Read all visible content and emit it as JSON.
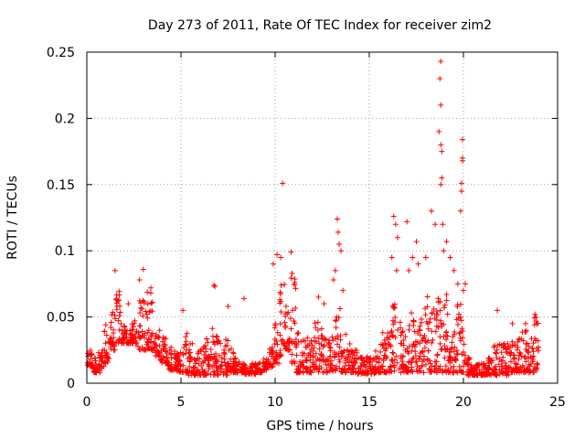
{
  "chart_data": {
    "type": "scatter",
    "title": "Day 273 of 2011, Rate Of TEC Index for receiver zim2",
    "xlabel": "GPS time / hours",
    "ylabel": "ROTI / TECUs",
    "xlim": [
      0,
      25
    ],
    "ylim": [
      0,
      0.25
    ],
    "xticks": [
      0,
      5,
      10,
      15,
      20,
      25
    ],
    "yticks": [
      0,
      0.05,
      0.1,
      0.15,
      0.2,
      0.25
    ],
    "xtick_labels": [
      "0",
      "5",
      "10",
      "15",
      "20",
      "25"
    ],
    "ytick_labels": [
      "0",
      "0.05",
      "0.1",
      "0.15",
      "0.2",
      "0.25"
    ],
    "grid": true,
    "legend": "none",
    "marker": "+",
    "color": "#ff0000",
    "series": [
      {
        "envelope": [
          [
            0.0,
            0.012,
            0.025
          ],
          [
            0.3,
            0.008,
            0.02
          ],
          [
            0.6,
            0.008,
            0.025
          ],
          [
            0.9,
            0.015,
            0.045
          ],
          [
            1.2,
            0.025,
            0.055
          ],
          [
            1.5,
            0.03,
            0.07
          ],
          [
            1.8,
            0.03,
            0.045
          ],
          [
            2.1,
            0.03,
            0.04
          ],
          [
            2.4,
            0.03,
            0.05
          ],
          [
            2.7,
            0.025,
            0.065
          ],
          [
            3.0,
            0.025,
            0.075
          ],
          [
            3.3,
            0.025,
            0.07
          ],
          [
            3.6,
            0.02,
            0.04
          ],
          [
            3.9,
            0.015,
            0.035
          ],
          [
            4.2,
            0.01,
            0.03
          ],
          [
            4.5,
            0.01,
            0.025
          ],
          [
            4.8,
            0.008,
            0.025
          ],
          [
            5.1,
            0.008,
            0.045
          ],
          [
            5.4,
            0.006,
            0.035
          ],
          [
            5.7,
            0.006,
            0.025
          ],
          [
            6.0,
            0.006,
            0.03
          ],
          [
            6.3,
            0.006,
            0.035
          ],
          [
            6.6,
            0.006,
            0.045
          ],
          [
            6.9,
            0.006,
            0.04
          ],
          [
            7.2,
            0.006,
            0.035
          ],
          [
            7.5,
            0.008,
            0.03
          ],
          [
            7.8,
            0.008,
            0.02
          ],
          [
            8.1,
            0.008,
            0.015
          ],
          [
            8.4,
            0.007,
            0.014
          ],
          [
            8.7,
            0.007,
            0.015
          ],
          [
            9.0,
            0.008,
            0.016
          ],
          [
            9.3,
            0.01,
            0.02
          ],
          [
            9.6,
            0.012,
            0.03
          ],
          [
            9.9,
            0.015,
            0.05
          ],
          [
            10.2,
            0.02,
            0.09
          ],
          [
            10.5,
            0.025,
            0.06
          ],
          [
            10.8,
            0.015,
            0.08
          ],
          [
            11.1,
            0.008,
            0.04
          ],
          [
            11.4,
            0.008,
            0.035
          ],
          [
            11.7,
            0.008,
            0.035
          ],
          [
            12.0,
            0.008,
            0.05
          ],
          [
            12.3,
            0.008,
            0.045
          ],
          [
            12.6,
            0.008,
            0.04
          ],
          [
            12.9,
            0.008,
            0.035
          ],
          [
            13.2,
            0.008,
            0.06
          ],
          [
            13.5,
            0.008,
            0.045
          ],
          [
            13.8,
            0.008,
            0.03
          ],
          [
            14.1,
            0.008,
            0.025
          ],
          [
            14.4,
            0.007,
            0.02
          ],
          [
            14.7,
            0.007,
            0.02
          ],
          [
            15.0,
            0.007,
            0.02
          ],
          [
            15.3,
            0.008,
            0.025
          ],
          [
            15.6,
            0.008,
            0.04
          ],
          [
            15.9,
            0.008,
            0.04
          ],
          [
            16.2,
            0.008,
            0.06
          ],
          [
            16.5,
            0.008,
            0.05
          ],
          [
            16.8,
            0.008,
            0.05
          ],
          [
            17.1,
            0.008,
            0.055
          ],
          [
            17.4,
            0.008,
            0.045
          ],
          [
            17.7,
            0.008,
            0.06
          ],
          [
            18.0,
            0.008,
            0.07
          ],
          [
            18.3,
            0.008,
            0.06
          ],
          [
            18.6,
            0.008,
            0.065
          ],
          [
            18.9,
            0.008,
            0.07
          ],
          [
            19.2,
            0.008,
            0.05
          ],
          [
            19.5,
            0.008,
            0.06
          ],
          [
            19.8,
            0.008,
            0.06
          ],
          [
            20.1,
            0.006,
            0.02
          ],
          [
            20.4,
            0.006,
            0.015
          ],
          [
            20.7,
            0.006,
            0.015
          ],
          [
            21.0,
            0.006,
            0.015
          ],
          [
            21.3,
            0.006,
            0.02
          ],
          [
            21.6,
            0.006,
            0.03
          ],
          [
            21.9,
            0.006,
            0.035
          ],
          [
            22.2,
            0.006,
            0.03
          ],
          [
            22.5,
            0.008,
            0.035
          ],
          [
            22.8,
            0.008,
            0.035
          ],
          [
            23.1,
            0.008,
            0.04
          ],
          [
            23.4,
            0.008,
            0.035
          ],
          [
            23.7,
            0.008,
            0.05
          ]
        ],
        "highlights": [
          [
            1.5,
            0.085
          ],
          [
            2.8,
            0.078
          ],
          [
            3.0,
            0.086
          ],
          [
            3.4,
            0.072
          ],
          [
            2.2,
            0.06
          ],
          [
            5.1,
            0.055
          ],
          [
            6.8,
            0.073
          ],
          [
            6.75,
            0.074
          ],
          [
            7.5,
            0.058
          ],
          [
            8.35,
            0.064
          ],
          [
            9.9,
            0.09
          ],
          [
            10.1,
            0.097
          ],
          [
            10.3,
            0.095
          ],
          [
            10.4,
            0.151
          ],
          [
            10.85,
            0.099
          ],
          [
            10.9,
            0.083
          ],
          [
            12.3,
            0.065
          ],
          [
            12.6,
            0.06
          ],
          [
            13.3,
            0.124
          ],
          [
            13.35,
            0.114
          ],
          [
            13.4,
            0.105
          ],
          [
            13.5,
            0.1
          ],
          [
            13.2,
            0.085
          ],
          [
            13.6,
            0.07
          ],
          [
            13.1,
            0.078
          ],
          [
            16.3,
            0.126
          ],
          [
            16.4,
            0.12
          ],
          [
            16.5,
            0.11
          ],
          [
            16.2,
            0.095
          ],
          [
            16.45,
            0.085
          ],
          [
            17.0,
            0.122
          ],
          [
            17.1,
            0.085
          ],
          [
            17.5,
            0.107
          ],
          [
            17.3,
            0.095
          ],
          [
            17.6,
            0.09
          ],
          [
            18.0,
            0.095
          ],
          [
            18.3,
            0.13
          ],
          [
            18.5,
            0.12
          ],
          [
            18.8,
            0.243
          ],
          [
            18.75,
            0.23
          ],
          [
            18.8,
            0.21
          ],
          [
            18.7,
            0.19
          ],
          [
            18.8,
            0.18
          ],
          [
            18.85,
            0.175
          ],
          [
            18.85,
            0.155
          ],
          [
            18.8,
            0.15
          ],
          [
            18.9,
            0.12
          ],
          [
            18.95,
            0.1
          ],
          [
            19.1,
            0.107
          ],
          [
            19.3,
            0.095
          ],
          [
            19.5,
            0.085
          ],
          [
            19.7,
            0.075
          ],
          [
            19.85,
            0.13
          ],
          [
            19.9,
            0.151
          ],
          [
            19.9,
            0.145
          ],
          [
            19.95,
            0.17
          ],
          [
            19.95,
            0.168
          ],
          [
            19.95,
            0.184
          ],
          [
            20.0,
            0.07
          ],
          [
            20.1,
            0.075
          ],
          [
            21.8,
            0.055
          ],
          [
            22.6,
            0.045
          ],
          [
            23.3,
            0.045
          ],
          [
            23.8,
            0.052
          ],
          [
            23.9,
            0.045
          ]
        ]
      }
    ]
  }
}
